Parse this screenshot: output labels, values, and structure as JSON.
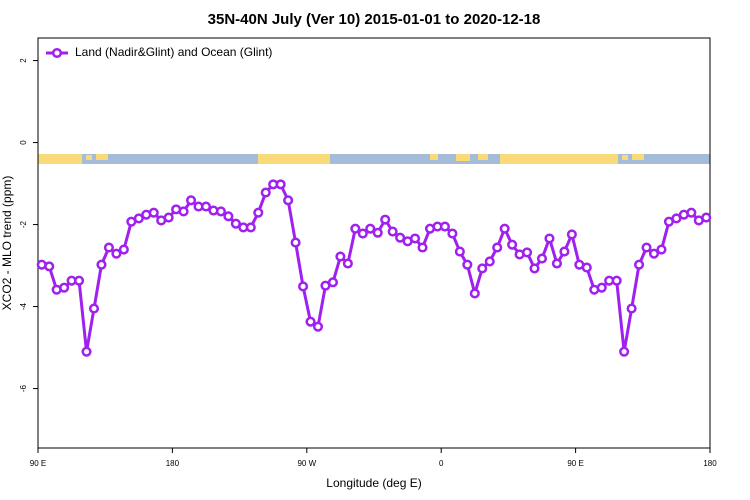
{
  "chart_data": {
    "type": "line",
    "title": "35N-40N July (Ver 10)   2015-01-01 to 2020-12-18",
    "x_label": "Longitude (deg E)",
    "y_label": "XCO2 - MLO trend (ppm)",
    "xlim": [
      90,
      540
    ],
    "xticks": [
      {
        "value": 90,
        "label": "90 E"
      },
      180,
      {
        "value": 270,
        "label": "90 W"
      },
      {
        "value": 360,
        "label": "0"
      },
      {
        "value": 450,
        "label": "90 E"
      },
      {
        "value": 540,
        "label": "180"
      }
    ],
    "ylim": [
      -7.45,
      2.55
    ],
    "yticks": [
      2,
      0,
      -2,
      -4,
      -6
    ],
    "legend": "top-left",
    "x": [
      92.5,
      97.5,
      102.5,
      107.5,
      112.5,
      117.5,
      122.5,
      127.5,
      132.5,
      137.5,
      142.5,
      147.5,
      152.5,
      157.5,
      162.5,
      167.5,
      172.5,
      177.5,
      182.5,
      187.5,
      192.5,
      197.5,
      202.5,
      207.5,
      212.5,
      217.5,
      222.5,
      227.5,
      232.5,
      237.5,
      242.5,
      247.5,
      252.5,
      257.5,
      262.5,
      267.5,
      272.5,
      277.5,
      282.5,
      287.5,
      292.5,
      297.5,
      302.5,
      307.5,
      312.5,
      317.5,
      322.5,
      327.5,
      332.5,
      337.5,
      342.5,
      347.5,
      352.5,
      357.5,
      362.5,
      367.5,
      372.5,
      377.5,
      382.5,
      387.5,
      392.5,
      397.5,
      402.5,
      407.5,
      412.5,
      417.5,
      422.5,
      427.5,
      432.5,
      437.5,
      442.5,
      447.5,
      452.5,
      457.5,
      462.5,
      467.5,
      472.5,
      477.5,
      482.5,
      487.5,
      492.5,
      497.5,
      502.5,
      507.5,
      512.5,
      517.5,
      522.5,
      527.5,
      532.5,
      537.5
    ],
    "series": [
      {
        "name": "Land (Nadir&Glint) and Ocean (Glint)",
        "color": "#a020f0",
        "values": [
          -2.98,
          -3.02,
          -3.59,
          -3.54,
          -3.37,
          -3.37,
          -5.1,
          -4.05,
          -2.98,
          -2.56,
          -2.71,
          -2.61,
          -1.93,
          -1.85,
          -1.76,
          -1.71,
          -1.9,
          -1.83,
          -1.63,
          -1.68,
          -1.41,
          -1.56,
          -1.56,
          -1.66,
          -1.68,
          -1.8,
          -1.98,
          -2.07,
          -2.07,
          -1.71,
          -1.22,
          -1.02,
          -1.02,
          -1.41,
          -2.44,
          -3.51,
          -4.37,
          -4.49,
          -3.49,
          -3.41,
          -2.78,
          -2.95,
          -2.1,
          -2.22,
          -2.1,
          -2.2,
          -1.88,
          -2.17,
          -2.32,
          -2.41,
          -2.34,
          -2.56,
          -2.1,
          -2.05,
          -2.05,
          -2.22,
          -2.66,
          -2.98,
          -3.68,
          -3.07,
          -2.9,
          -2.56,
          -2.1,
          -2.49,
          -2.73,
          -2.68,
          -3.07,
          -2.83,
          -2.34,
          -2.95,
          -2.66,
          -2.24,
          -2.98,
          -3.05,
          -3.59,
          -3.54,
          -3.37,
          -3.37,
          -5.1,
          -4.05,
          -2.98,
          -2.56,
          -2.71,
          -2.61,
          -1.93,
          -1.85,
          -1.76,
          -1.71,
          -1.9,
          -1.83
        ]
      }
    ]
  }
}
